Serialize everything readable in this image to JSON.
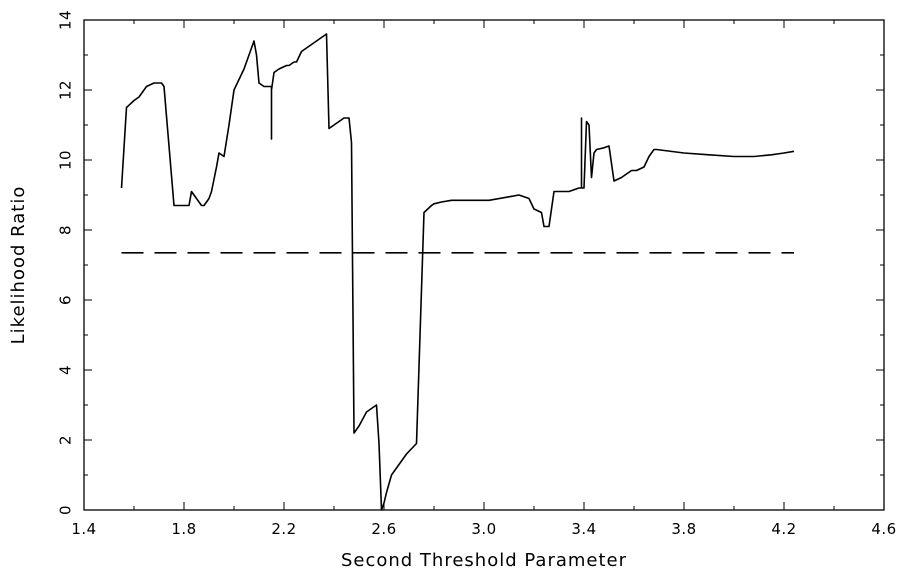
{
  "chart_data": {
    "type": "line",
    "title": "",
    "xlabel": "Second Threshold Parameter",
    "ylabel": "Likelihood Ratio",
    "xlim": [
      1.4,
      4.6
    ],
    "ylim": [
      0,
      14
    ],
    "xticks": [
      1.4,
      1.8,
      2.2,
      2.6,
      3.0,
      3.4,
      3.8,
      4.2,
      4.6
    ],
    "xtick_labels": [
      "1.4",
      "1.8",
      "2.2",
      "2.6",
      "3.0",
      "3.4",
      "3.8",
      "4.2",
      "4.6"
    ],
    "yticks": [
      0,
      2,
      4,
      6,
      8,
      10,
      12,
      14
    ],
    "ytick_labels": [
      "0",
      "2",
      "4",
      "6",
      "8",
      "10",
      "12",
      "14"
    ],
    "grid": false,
    "series": [
      {
        "style": "solid",
        "color": "#000000",
        "x": [
          1.55,
          1.57,
          1.6,
          1.62,
          1.65,
          1.68,
          1.71,
          1.72,
          1.76,
          1.79,
          1.82,
          1.83,
          1.85,
          1.87,
          1.88,
          1.9,
          1.91,
          1.93,
          1.94,
          1.96,
          1.98,
          2.0,
          2.04,
          2.07,
          2.08,
          2.09,
          2.1,
          2.12,
          2.15,
          2.15,
          2.15,
          2.16,
          2.18,
          2.21,
          2.22,
          2.24,
          2.25,
          2.27,
          2.29,
          2.31,
          2.33,
          2.35,
          2.37,
          2.38,
          2.4,
          2.44,
          2.46,
          2.47,
          2.48,
          2.5,
          2.53,
          2.57,
          2.58,
          2.59,
          2.6,
          2.61,
          2.63,
          2.66,
          2.69,
          2.73,
          2.76,
          2.79,
          2.8,
          2.83,
          2.87,
          2.92,
          3.02,
          3.1,
          3.14,
          3.18,
          3.2,
          3.23,
          3.24,
          3.26,
          3.28,
          3.31,
          3.34,
          3.36,
          3.38,
          3.39,
          3.39,
          3.39,
          3.4,
          3.41,
          3.42,
          3.43,
          3.44,
          3.45,
          3.48,
          3.5,
          3.52,
          3.55,
          3.57,
          3.59,
          3.61,
          3.64,
          3.66,
          3.68,
          3.69,
          3.8,
          3.9,
          4.0,
          4.08,
          4.15,
          4.2,
          4.24
        ],
        "y": [
          9.2,
          11.5,
          11.7,
          11.8,
          12.1,
          12.2,
          12.2,
          12.1,
          8.7,
          8.7,
          8.7,
          9.1,
          8.9,
          8.7,
          8.7,
          8.9,
          9.1,
          9.8,
          10.2,
          10.1,
          11.0,
          12.0,
          12.6,
          13.2,
          13.4,
          13.0,
          12.2,
          12.1,
          12.1,
          10.6,
          12.0,
          12.5,
          12.6,
          12.7,
          12.7,
          12.8,
          12.8,
          13.1,
          13.2,
          13.3,
          13.4,
          13.5,
          13.6,
          10.9,
          11.0,
          11.2,
          11.2,
          10.5,
          2.2,
          2.4,
          2.8,
          3.0,
          1.9,
          0.0,
          0.2,
          0.5,
          1.0,
          1.3,
          1.6,
          1.9,
          8.5,
          8.7,
          8.75,
          8.8,
          8.85,
          8.85,
          8.85,
          8.95,
          9.0,
          8.9,
          8.6,
          8.5,
          8.1,
          8.1,
          9.1,
          9.1,
          9.1,
          9.15,
          9.2,
          9.2,
          11.2,
          9.2,
          9.2,
          11.1,
          11.0,
          9.5,
          10.2,
          10.3,
          10.35,
          10.4,
          9.4,
          9.5,
          9.6,
          9.7,
          9.7,
          9.8,
          10.1,
          10.3,
          10.3,
          10.2,
          10.15,
          10.1,
          10.1,
          10.15,
          10.2,
          10.25
        ]
      },
      {
        "style": "dashed",
        "color": "#000000",
        "x": [
          1.55,
          4.24
        ],
        "y": [
          7.35,
          7.35
        ]
      }
    ]
  }
}
